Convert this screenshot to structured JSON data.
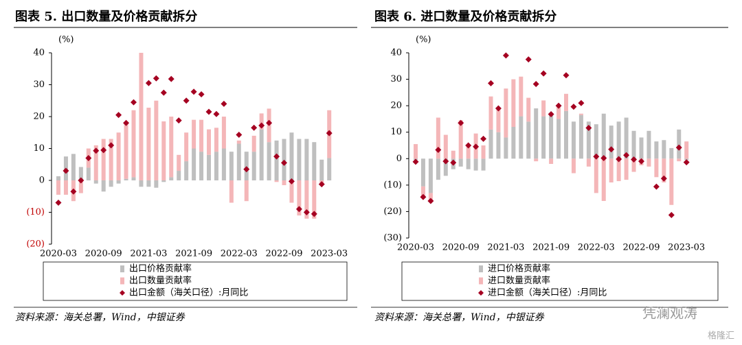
{
  "chart_data": [
    {
      "type": "bar",
      "title": "图表 5. 出口数量及价格贡献拆分",
      "unit_label": "(%)",
      "categories": [
        "2020-03",
        null,
        null,
        null,
        null,
        null,
        "2020-09",
        null,
        null,
        null,
        null,
        null,
        "2021-03",
        null,
        null,
        null,
        null,
        null,
        "2021-09",
        null,
        null,
        null,
        null,
        null,
        "2022-03",
        null,
        null,
        null,
        null,
        null,
        "2022-09",
        null,
        null,
        null,
        null,
        null,
        "2023-03"
      ],
      "ylim": [
        -20,
        40
      ],
      "yticks": [
        {
          "value": -20,
          "label": "(20)"
        },
        {
          "value": -10,
          "label": "(10)"
        },
        0,
        10,
        20,
        30,
        40
      ],
      "negative_tick_color": "#c00000",
      "series": [
        {
          "name": "出口价格贡献率",
          "type": "bar",
          "color": "#bfbfbf",
          "values": [
            1.3,
            7.5,
            8.3,
            4.2,
            4,
            -1,
            -3.5,
            -2,
            -1,
            0.5,
            1,
            -2,
            -2,
            -2.3,
            -0.5,
            1,
            3,
            6,
            10,
            9,
            8,
            9,
            10,
            9,
            11.5,
            9,
            9,
            16,
            12,
            12.5,
            13,
            15,
            13,
            13,
            12,
            6.5,
            7
          ]
        },
        {
          "name": "出口数量贡献率",
          "type": "bar",
          "color": "#f4b6b8",
          "values": [
            -4.5,
            -4.5,
            -6.5,
            -4,
            6,
            11,
            13,
            13,
            15,
            17.5,
            21,
            40,
            22.8,
            25,
            18.5,
            19,
            5,
            9,
            9,
            10,
            8,
            7.5,
            10,
            -7,
            1,
            -6.5,
            5,
            5,
            10.5,
            -0.5,
            -1.5,
            -7,
            -11,
            -12,
            -12,
            -1,
            15
          ]
        },
        {
          "name": "出口金额（海关口径）:月同比",
          "type": "scatter",
          "color": "#a50021",
          "values": [
            -7,
            3,
            -3.5,
            0,
            7,
            9.3,
            9.5,
            11,
            20.5,
            18,
            24.5,
            null,
            30.5,
            32,
            27.5,
            31.8,
            18.8,
            25,
            27.8,
            27,
            21.5,
            20.8,
            24,
            null,
            14.3,
            3.5,
            16.5,
            17.2,
            18,
            7.5,
            5.5,
            -0.3,
            -9,
            -10,
            -10.5,
            -1.2,
            14.8
          ]
        }
      ]
    },
    {
      "type": "bar",
      "title": "图表 6. 进口数量及价格贡献拆分",
      "unit_label": "(%)",
      "categories": [
        "2020-03",
        null,
        null,
        null,
        null,
        null,
        "2020-09",
        null,
        null,
        null,
        null,
        null,
        "2021-03",
        null,
        null,
        null,
        null,
        null,
        "2021-09",
        null,
        null,
        null,
        null,
        null,
        "2022-03",
        null,
        null,
        null,
        null,
        null,
        "2022-09",
        null,
        null,
        null,
        null,
        null,
        "2023-03"
      ],
      "ylim": [
        -30,
        40
      ],
      "yticks": [
        {
          "value": -30,
          "label": "(30)"
        },
        {
          "value": -20,
          "label": "(20)"
        },
        {
          "value": -10,
          "label": "(10)"
        },
        0,
        10,
        20,
        30,
        40
      ],
      "negative_tick_color": "#000000",
      "series": [
        {
          "name": "进口价格贡献率",
          "type": "bar",
          "color": "#bfbfbf",
          "values": [
            -0.5,
            -10.5,
            -13,
            -8,
            -6.5,
            -4,
            -3,
            -4,
            -4.5,
            -4.5,
            11,
            10,
            8,
            12,
            16,
            14,
            19,
            16,
            17,
            15,
            18,
            14,
            16.5,
            14,
            13,
            17,
            12.5,
            14,
            15.5,
            10.5,
            8,
            10.5,
            6.5,
            7,
            4,
            11,
            -0.5
          ]
        },
        {
          "name": "进口数量贡献率",
          "type": "bar",
          "color": "#f4b6b8",
          "values": [
            5.5,
            -4,
            -3,
            15.5,
            9,
            3,
            14.5,
            5,
            9.5,
            5,
            12.5,
            9,
            18.5,
            18,
            15,
            9,
            -1,
            6,
            -2,
            5,
            6.5,
            -5.5,
            0.5,
            -3,
            -13,
            -16,
            -9,
            -8.5,
            -8,
            -5,
            -2.5,
            -3,
            -7,
            -9,
            -17.5,
            -1,
            6.5
          ]
        },
        {
          "name": "进口金额（海关口径）:月同比",
          "type": "scatter",
          "color": "#a50021",
          "values": [
            -1.2,
            -14.5,
            -16,
            3.3,
            -1,
            -1.5,
            13.5,
            5,
            4.5,
            7.5,
            28.5,
            19,
            39,
            null,
            null,
            37.5,
            28.2,
            32.2,
            16.8,
            20,
            31.5,
            19.6,
            21,
            11.6,
            0.8,
            0.2,
            3.5,
            -0.2,
            1.3,
            -0.3,
            -1,
            null,
            -10.6,
            -7.5,
            -21.3,
            4.2,
            -1.4
          ]
        }
      ]
    }
  ],
  "source": "资料来源：海关总署，Wind，中银证券",
  "watermark": "凭澜观涛",
  "watermark2": "格隆汇"
}
